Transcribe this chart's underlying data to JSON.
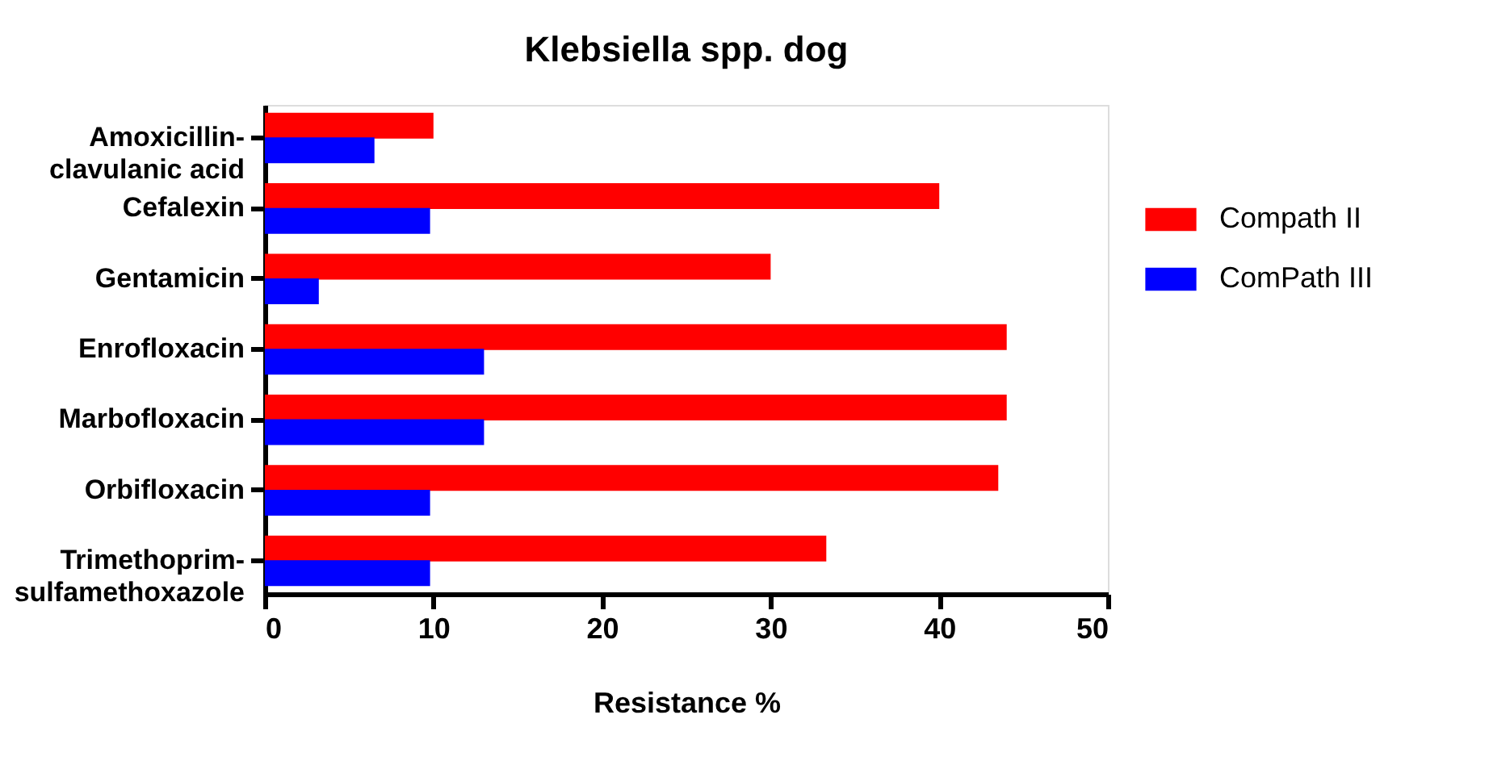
{
  "chart_data": {
    "type": "bar",
    "orientation": "horizontal",
    "title": "Klebsiella spp. dog",
    "xlabel": "Resistance %",
    "categories": [
      "Amoxicillin-clavulanic acid",
      "Cefalexin",
      "Gentamicin",
      "Enrofloxacin",
      "Marbofloxacin",
      "Orbifloxacin",
      "Trimethoprim-sulfamethoxazole"
    ],
    "series": [
      {
        "name": "Compath II",
        "color": "#ff0000",
        "values": [
          10,
          40,
          30,
          44,
          44,
          43.5,
          33.3
        ]
      },
      {
        "name": "ComPath III",
        "color": "#0000ff",
        "values": [
          6.5,
          9.8,
          3.2,
          13,
          13,
          9.8,
          9.8
        ]
      }
    ],
    "xlim": [
      0,
      50
    ],
    "xticks": [
      0,
      10,
      20,
      30,
      40,
      50
    ],
    "grid": false,
    "legend": "right"
  }
}
